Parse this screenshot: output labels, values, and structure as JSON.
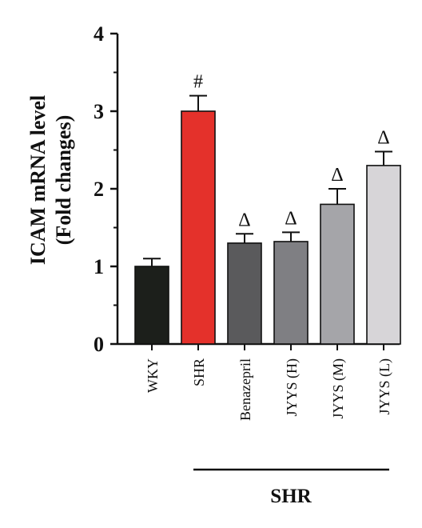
{
  "chart_data": {
    "type": "bar",
    "ylabel_lines": [
      "ICAM mRNA level",
      "(Fold changes)"
    ],
    "ylim": [
      0,
      4
    ],
    "yticks": [
      "0",
      "1",
      "2",
      "3",
      "4"
    ],
    "categories": [
      "WKY",
      "SHR",
      "Benazepril",
      "JYYS (H)",
      "JYYS (M)",
      "JYYS (L)"
    ],
    "values": [
      1.0,
      3.0,
      1.3,
      1.32,
      1.8,
      2.3
    ],
    "errors": [
      0.1,
      0.2,
      0.12,
      0.12,
      0.2,
      0.18
    ],
    "markers": [
      "",
      "#",
      "Δ",
      "Δ",
      "Δ",
      "Δ"
    ],
    "colors": [
      "#1c1f1b",
      "#e4312b",
      "#5a5a5c",
      "#7f7f83",
      "#a5a5a9",
      "#d7d5d8"
    ],
    "group_label": "SHR",
    "grid": false,
    "legend": "none"
  }
}
